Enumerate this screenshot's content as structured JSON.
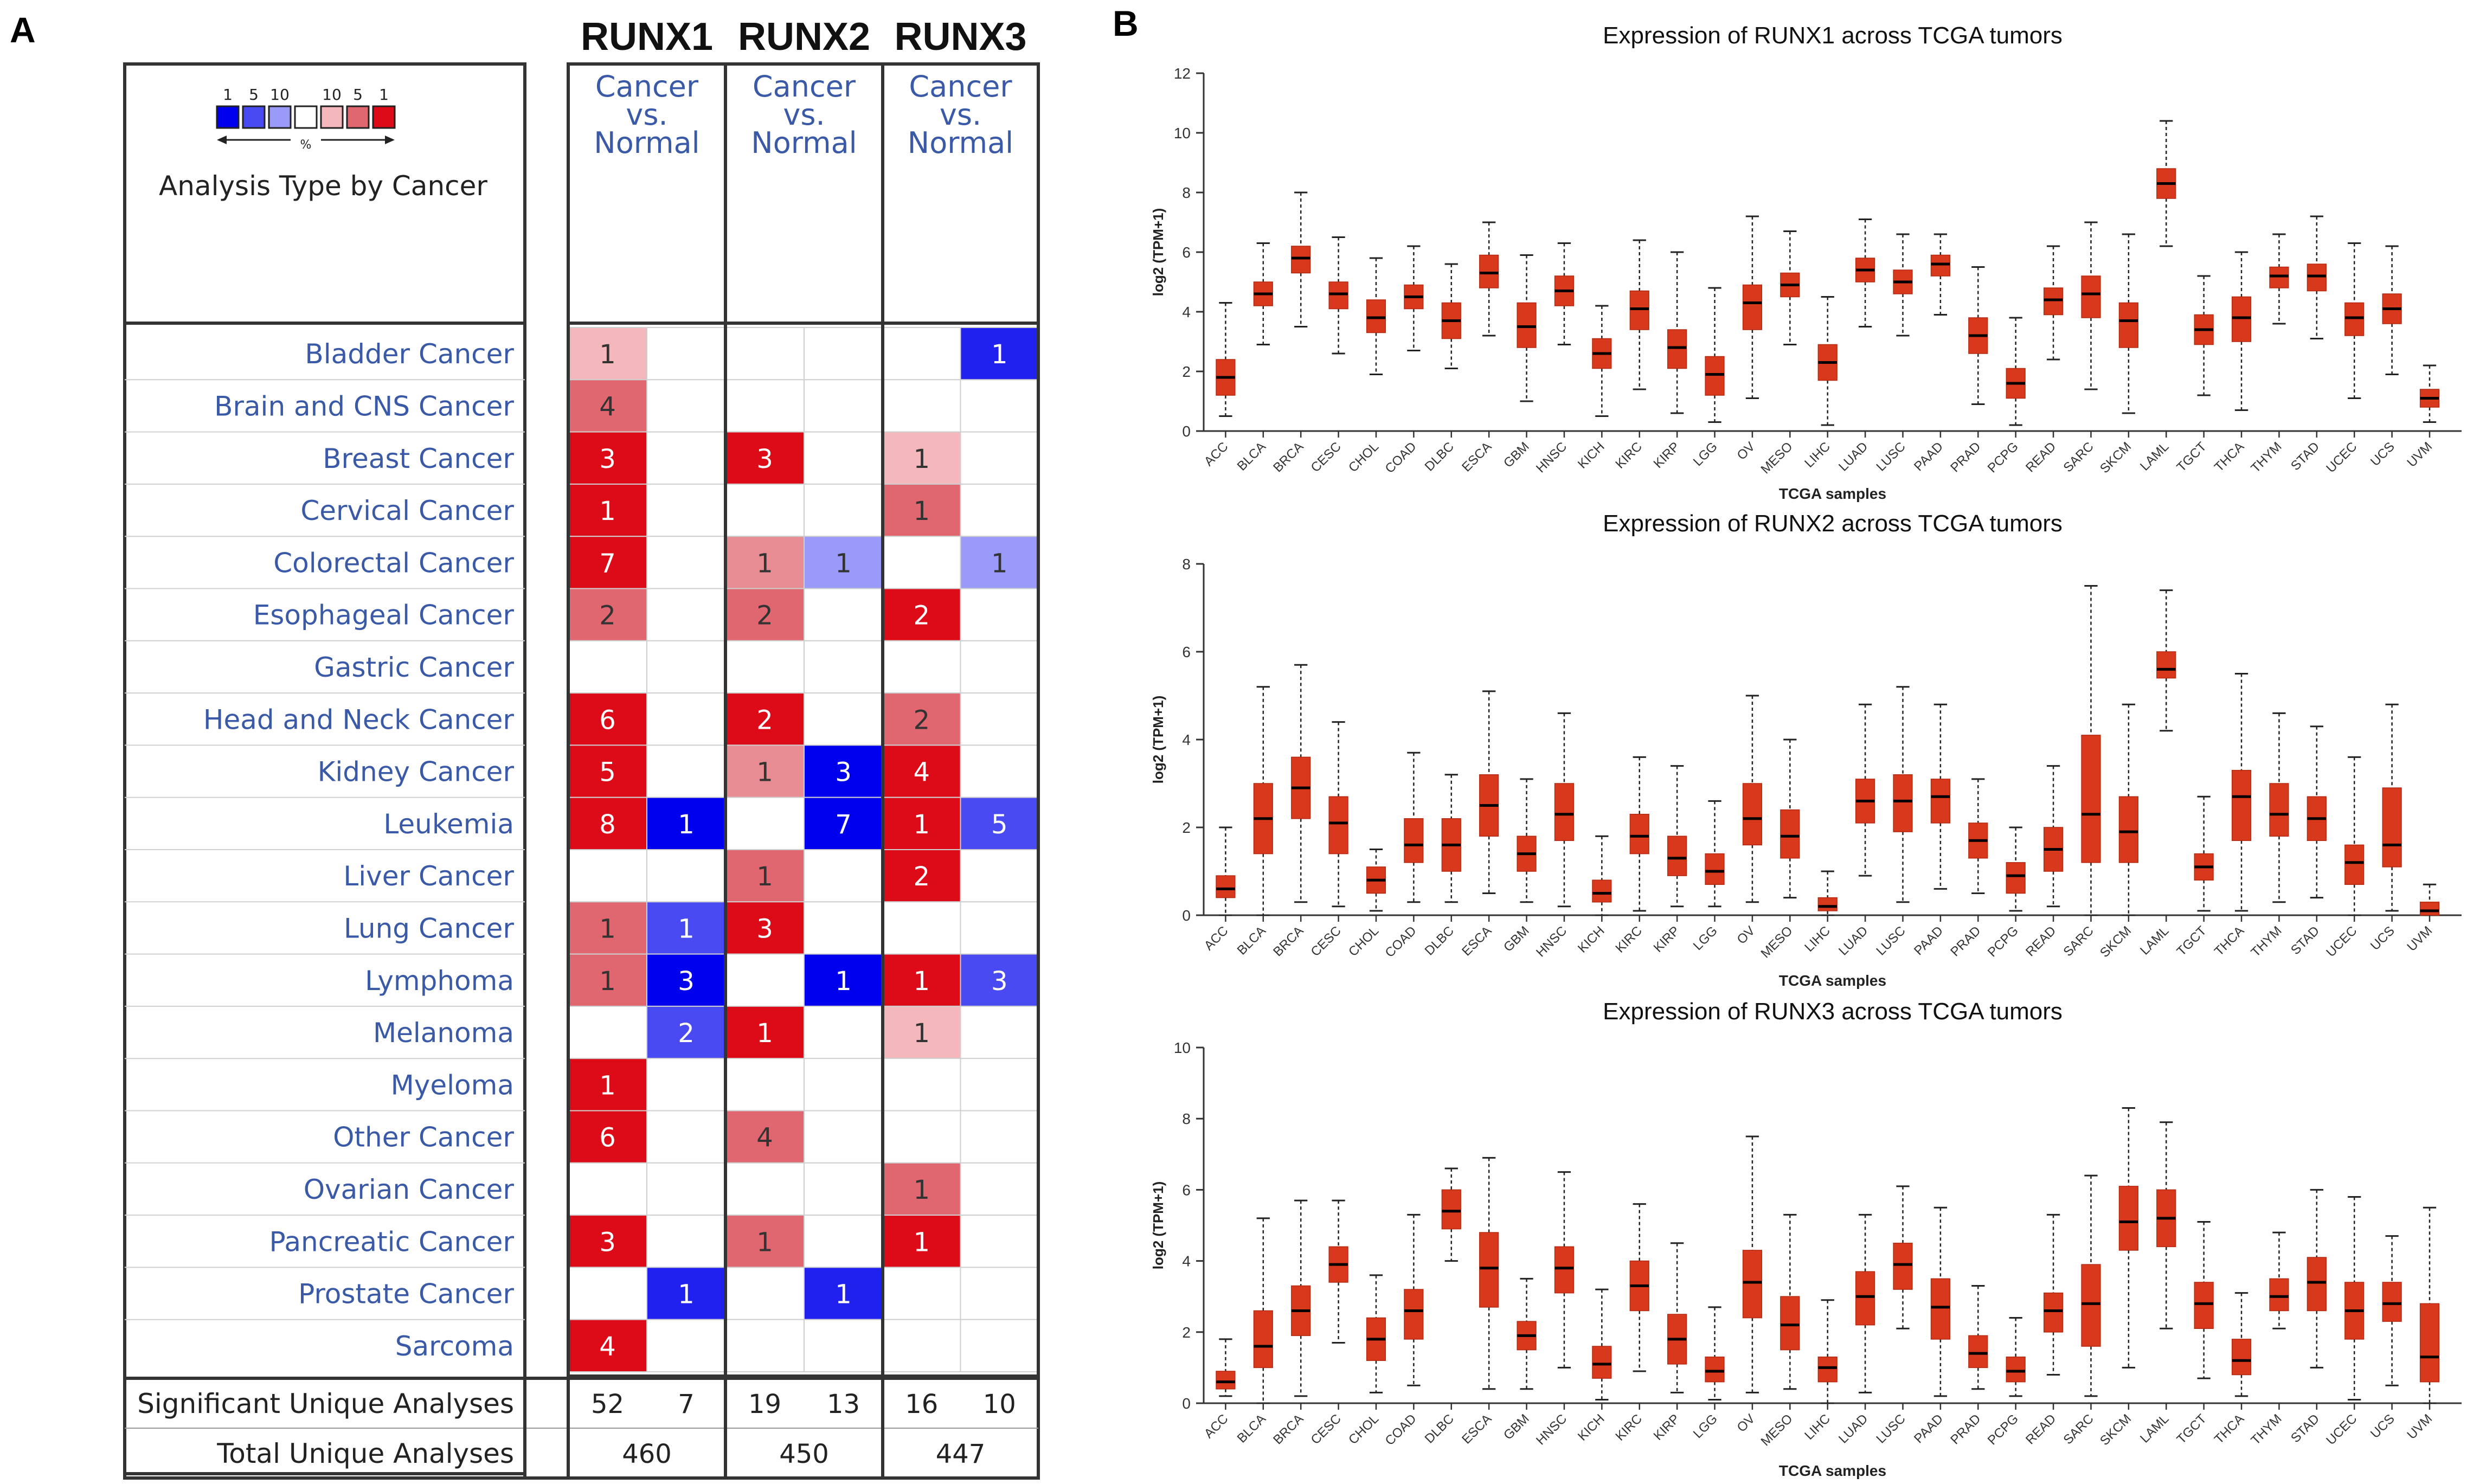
{
  "panels": {
    "a": "A",
    "b": "B"
  },
  "oncomine": {
    "genes": [
      "RUNX1",
      "RUNX2",
      "RUNX3"
    ],
    "column_header": [
      "Cancer",
      "vs.",
      "Normal"
    ],
    "legend": {
      "ranks": [
        "1",
        "5",
        "10",
        "10",
        "5",
        "1"
      ],
      "percent_symbol": "%",
      "colors": [
        "#0000ee",
        "#4a4af2",
        "#9a9af8",
        "#ffffff",
        "#f4b8bc",
        "#e06670",
        "#dd0a18"
      ]
    },
    "analysis_type_label": "Analysis Type by Cancer",
    "cancers": [
      "Bladder Cancer",
      "Brain and CNS Cancer",
      "Breast Cancer",
      "Cervical Cancer",
      "Colorectal Cancer",
      "Esophageal Cancer",
      "Gastric Cancer",
      "Head and Neck Cancer",
      "Kidney Cancer",
      "Leukemia",
      "Liver Cancer",
      "Lung Cancer",
      "Lymphoma",
      "Melanoma",
      "Myeloma",
      "Other Cancer",
      "Ovarian Cancer",
      "Pancreatic Cancer",
      "Prostate Cancer",
      "Sarcoma"
    ],
    "cells": [
      [
        {
          "v": "1",
          "c": "#f4b8bc"
        },
        null,
        null,
        null,
        null,
        {
          "v": "1",
          "c": "#2020ef"
        }
      ],
      [
        {
          "v": "4",
          "c": "#e06670"
        },
        null,
        null,
        null,
        null,
        null
      ],
      [
        {
          "v": "3",
          "c": "#dd0a18"
        },
        null,
        {
          "v": "3",
          "c": "#dd0a18"
        },
        null,
        {
          "v": "1",
          "c": "#f4b8bc"
        },
        null
      ],
      [
        {
          "v": "1",
          "c": "#dd0a18"
        },
        null,
        null,
        null,
        {
          "v": "1",
          "c": "#e06670"
        },
        null
      ],
      [
        {
          "v": "7",
          "c": "#dd0a18"
        },
        null,
        {
          "v": "1",
          "c": "#e88c93"
        },
        {
          "v": "1",
          "c": "#9a9af8"
        },
        null,
        {
          "v": "1",
          "c": "#9a9af8"
        }
      ],
      [
        {
          "v": "2",
          "c": "#e06670"
        },
        null,
        {
          "v": "2",
          "c": "#e06670"
        },
        null,
        {
          "v": "2",
          "c": "#dd0a18"
        },
        null
      ],
      [
        null,
        null,
        null,
        null,
        null,
        null
      ],
      [
        {
          "v": "6",
          "c": "#dd0a18"
        },
        null,
        {
          "v": "2",
          "c": "#dd0a18"
        },
        null,
        {
          "v": "2",
          "c": "#e06670"
        },
        null
      ],
      [
        {
          "v": "5",
          "c": "#dd0a18"
        },
        null,
        {
          "v": "1",
          "c": "#e88c93"
        },
        {
          "v": "3",
          "c": "#0000ee"
        },
        {
          "v": "4",
          "c": "#dd0a18"
        },
        null
      ],
      [
        {
          "v": "8",
          "c": "#dd0a18"
        },
        {
          "v": "1",
          "c": "#0000ee"
        },
        null,
        {
          "v": "7",
          "c": "#0000ee"
        },
        {
          "v": "1",
          "c": "#dd0a18"
        },
        {
          "v": "5",
          "c": "#4a4af2"
        }
      ],
      [
        null,
        null,
        {
          "v": "1",
          "c": "#e06670"
        },
        null,
        {
          "v": "2",
          "c": "#dd0a18"
        },
        null
      ],
      [
        {
          "v": "1",
          "c": "#e06670"
        },
        {
          "v": "1",
          "c": "#4a4af2"
        },
        {
          "v": "3",
          "c": "#dd0a18"
        },
        null,
        null,
        null
      ],
      [
        {
          "v": "1",
          "c": "#e06670"
        },
        {
          "v": "3",
          "c": "#0000ee"
        },
        null,
        {
          "v": "1",
          "c": "#0000ee"
        },
        {
          "v": "1",
          "c": "#dd0a18"
        },
        {
          "v": "3",
          "c": "#4a4af2"
        }
      ],
      [
        null,
        {
          "v": "2",
          "c": "#4a4af2"
        },
        {
          "v": "1",
          "c": "#dd0a18"
        },
        null,
        {
          "v": "1",
          "c": "#f4b8bc"
        },
        null
      ],
      [
        {
          "v": "1",
          "c": "#dd0a18"
        },
        null,
        null,
        null,
        null,
        null
      ],
      [
        {
          "v": "6",
          "c": "#dd0a18"
        },
        null,
        {
          "v": "4",
          "c": "#e06670"
        },
        null,
        null,
        null
      ],
      [
        null,
        null,
        null,
        null,
        {
          "v": "1",
          "c": "#e06670"
        },
        null
      ],
      [
        {
          "v": "3",
          "c": "#dd0a18"
        },
        null,
        {
          "v": "1",
          "c": "#e06670"
        },
        null,
        {
          "v": "1",
          "c": "#dd0a18"
        },
        null
      ],
      [
        null,
        {
          "v": "1",
          "c": "#2020ef"
        },
        null,
        {
          "v": "1",
          "c": "#2020ef"
        },
        null,
        null
      ],
      [
        {
          "v": "4",
          "c": "#dd0a18"
        },
        null,
        null,
        null,
        null,
        null
      ]
    ],
    "footer": {
      "significant_label": "Significant Unique Analyses",
      "significant": [
        "52",
        "7",
        "19",
        "13",
        "16",
        "10"
      ],
      "total_label": "Total Unique Analyses",
      "total": [
        "460",
        "450",
        "447"
      ]
    }
  },
  "chart_data": [
    {
      "type": "box",
      "title": "Expression of RUNX1 across TCGA tumors",
      "xlabel": "TCGA samples",
      "ylabel": "log2 (TPM+1)",
      "ylim": [
        0,
        12
      ],
      "yticks": [
        0,
        2,
        4,
        6,
        8,
        10,
        12
      ],
      "color": "#d8381b",
      "categories": [
        "ACC",
        "BLCA",
        "BRCA",
        "CESC",
        "CHOL",
        "COAD",
        "DLBC",
        "ESCA",
        "GBM",
        "HNSC",
        "KICH",
        "KIRC",
        "KIRP",
        "LGG",
        "OV",
        "MESO",
        "LIHC",
        "LUAD",
        "LUSC",
        "PAAD",
        "PRAD",
        "PCPG",
        "READ",
        "SARC",
        "SKCM",
        "LAML",
        "TGCT",
        "THCA",
        "THYM",
        "STAD",
        "UCEC",
        "UCS",
        "UVM"
      ],
      "box": [
        [
          0.5,
          1.2,
          1.8,
          2.4,
          4.3
        ],
        [
          2.9,
          4.2,
          4.6,
          5.0,
          6.3
        ],
        [
          3.5,
          5.3,
          5.8,
          6.2,
          8.0
        ],
        [
          2.6,
          4.1,
          4.6,
          5.0,
          6.5
        ],
        [
          1.9,
          3.3,
          3.8,
          4.4,
          5.8
        ],
        [
          2.7,
          4.1,
          4.5,
          4.9,
          6.2
        ],
        [
          2.1,
          3.1,
          3.7,
          4.3,
          5.6
        ],
        [
          3.2,
          4.8,
          5.3,
          5.9,
          7.0
        ],
        [
          1.0,
          2.8,
          3.5,
          4.3,
          5.9
        ],
        [
          2.9,
          4.2,
          4.7,
          5.2,
          6.3
        ],
        [
          0.5,
          2.1,
          2.6,
          3.1,
          4.2
        ],
        [
          1.4,
          3.4,
          4.1,
          4.7,
          6.4
        ],
        [
          0.6,
          2.1,
          2.8,
          3.4,
          6.0
        ],
        [
          0.3,
          1.2,
          1.9,
          2.5,
          4.8
        ],
        [
          1.1,
          3.4,
          4.3,
          4.9,
          7.2
        ],
        [
          2.9,
          4.5,
          4.9,
          5.3,
          6.7
        ],
        [
          0.2,
          1.7,
          2.3,
          2.9,
          4.5
        ],
        [
          3.5,
          5.0,
          5.4,
          5.8,
          7.1
        ],
        [
          3.2,
          4.6,
          5.0,
          5.4,
          6.6
        ],
        [
          3.9,
          5.2,
          5.6,
          5.9,
          6.6
        ],
        [
          0.9,
          2.6,
          3.2,
          3.8,
          5.5
        ],
        [
          0.2,
          1.1,
          1.6,
          2.1,
          3.8
        ],
        [
          2.4,
          3.9,
          4.4,
          4.8,
          6.2
        ],
        [
          1.4,
          3.8,
          4.6,
          5.2,
          7.0
        ],
        [
          0.6,
          2.8,
          3.7,
          4.3,
          6.6
        ],
        [
          6.2,
          7.8,
          8.3,
          8.8,
          10.4
        ],
        [
          1.2,
          2.9,
          3.4,
          3.9,
          5.2
        ],
        [
          0.7,
          3.0,
          3.8,
          4.5,
          6.0
        ],
        [
          3.6,
          4.8,
          5.2,
          5.5,
          6.6
        ],
        [
          3.1,
          4.7,
          5.2,
          5.6,
          7.2
        ],
        [
          1.1,
          3.2,
          3.8,
          4.3,
          6.3
        ],
        [
          1.9,
          3.6,
          4.1,
          4.6,
          6.2
        ],
        [
          0.3,
          0.8,
          1.1,
          1.4,
          2.2
        ]
      ]
    },
    {
      "type": "box",
      "title": "Expression of RUNX2 across TCGA tumors",
      "xlabel": "TCGA samples",
      "ylabel": "log2 (TPM+1)",
      "ylim": [
        0,
        8
      ],
      "yticks": [
        0,
        2,
        4,
        6,
        8
      ],
      "color": "#d8381b",
      "categories": [
        "ACC",
        "BLCA",
        "BRCA",
        "CESC",
        "CHOL",
        "COAD",
        "DLBC",
        "ESCA",
        "GBM",
        "HNSC",
        "KICH",
        "KIRC",
        "KIRP",
        "LGG",
        "OV",
        "MESO",
        "LIHC",
        "LUAD",
        "LUSC",
        "PAAD",
        "PRAD",
        "PCPG",
        "READ",
        "SARC",
        "SKCM",
        "LAML",
        "TGCT",
        "THCA",
        "THYM",
        "STAD",
        "UCEC",
        "UCS",
        "UVM"
      ],
      "box": [
        [
          0.0,
          0.4,
          0.6,
          0.9,
          2.0
        ],
        [
          0.0,
          1.4,
          2.2,
          3.0,
          5.2
        ],
        [
          0.3,
          2.2,
          2.9,
          3.6,
          5.7
        ],
        [
          0.2,
          1.4,
          2.1,
          2.7,
          4.4
        ],
        [
          0.1,
          0.5,
          0.8,
          1.1,
          1.5
        ],
        [
          0.3,
          1.2,
          1.6,
          2.2,
          3.7
        ],
        [
          0.3,
          1.0,
          1.6,
          2.2,
          3.2
        ],
        [
          0.5,
          1.8,
          2.5,
          3.2,
          5.1
        ],
        [
          0.3,
          1.0,
          1.4,
          1.8,
          3.1
        ],
        [
          0.2,
          1.7,
          2.3,
          3.0,
          4.6
        ],
        [
          0.0,
          0.3,
          0.5,
          0.8,
          1.8
        ],
        [
          0.1,
          1.4,
          1.8,
          2.3,
          3.6
        ],
        [
          0.2,
          0.9,
          1.3,
          1.8,
          3.4
        ],
        [
          0.2,
          0.7,
          1.0,
          1.4,
          2.6
        ],
        [
          0.3,
          1.6,
          2.2,
          3.0,
          5.0
        ],
        [
          0.4,
          1.3,
          1.8,
          2.4,
          4.0
        ],
        [
          0.0,
          0.1,
          0.2,
          0.4,
          1.0
        ],
        [
          0.9,
          2.1,
          2.6,
          3.1,
          4.8
        ],
        [
          0.3,
          1.9,
          2.6,
          3.2,
          5.2
        ],
        [
          0.6,
          2.1,
          2.7,
          3.1,
          4.8
        ],
        [
          0.5,
          1.3,
          1.7,
          2.1,
          3.1
        ],
        [
          0.1,
          0.5,
          0.9,
          1.2,
          2.0
        ],
        [
          0.2,
          1.0,
          1.5,
          2.0,
          3.4
        ],
        [
          0.0,
          1.2,
          2.3,
          4.1,
          7.5
        ],
        [
          0.0,
          1.2,
          1.9,
          2.7,
          4.8
        ],
        [
          4.2,
          5.4,
          5.6,
          6.0,
          7.4
        ],
        [
          0.1,
          0.8,
          1.1,
          1.4,
          2.7
        ],
        [
          0.1,
          1.7,
          2.7,
          3.3,
          5.5
        ],
        [
          0.3,
          1.8,
          2.3,
          3.0,
          4.6
        ],
        [
          0.4,
          1.7,
          2.2,
          2.7,
          4.3
        ],
        [
          0.0,
          0.7,
          1.2,
          1.6,
          3.6
        ],
        [
          0.1,
          1.1,
          1.6,
          2.9,
          4.8
        ],
        [
          0.0,
          0.0,
          0.1,
          0.3,
          0.7
        ]
      ]
    },
    {
      "type": "box",
      "title": "Expression of RUNX3 across TCGA tumors",
      "xlabel": "TCGA samples",
      "ylabel": "log2 (TPM+1)",
      "ylim": [
        0,
        10
      ],
      "yticks": [
        0,
        2,
        4,
        6,
        8,
        10
      ],
      "color": "#d8381b",
      "categories": [
        "ACC",
        "BLCA",
        "BRCA",
        "CESC",
        "CHOL",
        "COAD",
        "DLBC",
        "ESCA",
        "GBM",
        "HNSC",
        "KICH",
        "KIRC",
        "KIRP",
        "LGG",
        "OV",
        "MESO",
        "LIHC",
        "LUAD",
        "LUSC",
        "PAAD",
        "PRAD",
        "PCPG",
        "READ",
        "SARC",
        "SKCM",
        "LAML",
        "TGCT",
        "THCA",
        "THYM",
        "STAD",
        "UCEC",
        "UCS",
        "UVM"
      ],
      "box": [
        [
          0.2,
          0.4,
          0.6,
          0.9,
          1.8
        ],
        [
          0.0,
          1.0,
          1.6,
          2.6,
          5.2
        ],
        [
          0.2,
          1.9,
          2.6,
          3.3,
          5.7
        ],
        [
          1.7,
          3.4,
          3.9,
          4.4,
          5.7
        ],
        [
          0.3,
          1.2,
          1.8,
          2.4,
          3.6
        ],
        [
          0.5,
          1.8,
          2.6,
          3.2,
          5.3
        ],
        [
          4.0,
          4.9,
          5.4,
          6.0,
          6.6
        ],
        [
          0.4,
          2.7,
          3.8,
          4.8,
          6.9
        ],
        [
          0.4,
          1.5,
          1.9,
          2.3,
          3.5
        ],
        [
          1.0,
          3.1,
          3.8,
          4.4,
          6.5
        ],
        [
          0.1,
          0.7,
          1.1,
          1.6,
          3.2
        ],
        [
          0.9,
          2.6,
          3.3,
          4.0,
          5.6
        ],
        [
          0.3,
          1.1,
          1.8,
          2.5,
          4.5
        ],
        [
          0.1,
          0.6,
          0.9,
          1.3,
          2.7
        ],
        [
          0.3,
          2.4,
          3.4,
          4.3,
          7.5
        ],
        [
          0.4,
          1.5,
          2.2,
          3.0,
          5.3
        ],
        [
          0.0,
          0.6,
          1.0,
          1.3,
          2.9
        ],
        [
          0.3,
          2.2,
          3.0,
          3.7,
          5.3
        ],
        [
          2.1,
          3.2,
          3.9,
          4.5,
          6.1
        ],
        [
          0.2,
          1.8,
          2.7,
          3.5,
          5.5
        ],
        [
          0.4,
          1.0,
          1.4,
          1.9,
          3.3
        ],
        [
          0.2,
          0.6,
          0.9,
          1.3,
          2.4
        ],
        [
          0.8,
          2.0,
          2.6,
          3.1,
          5.3
        ],
        [
          0.2,
          1.6,
          2.8,
          3.9,
          6.4
        ],
        [
          1.0,
          4.3,
          5.1,
          6.1,
          8.3
        ],
        [
          2.1,
          4.4,
          5.2,
          6.0,
          7.9
        ],
        [
          0.7,
          2.1,
          2.8,
          3.4,
          5.1
        ],
        [
          0.2,
          0.8,
          1.2,
          1.8,
          3.1
        ],
        [
          2.1,
          2.6,
          3.0,
          3.5,
          4.8
        ],
        [
          1.0,
          2.6,
          3.4,
          4.1,
          6.0
        ],
        [
          0.1,
          1.8,
          2.6,
          3.4,
          5.8
        ],
        [
          0.5,
          2.3,
          2.8,
          3.4,
          4.7
        ],
        [
          0.0,
          0.6,
          1.3,
          2.8,
          5.5
        ]
      ]
    }
  ]
}
